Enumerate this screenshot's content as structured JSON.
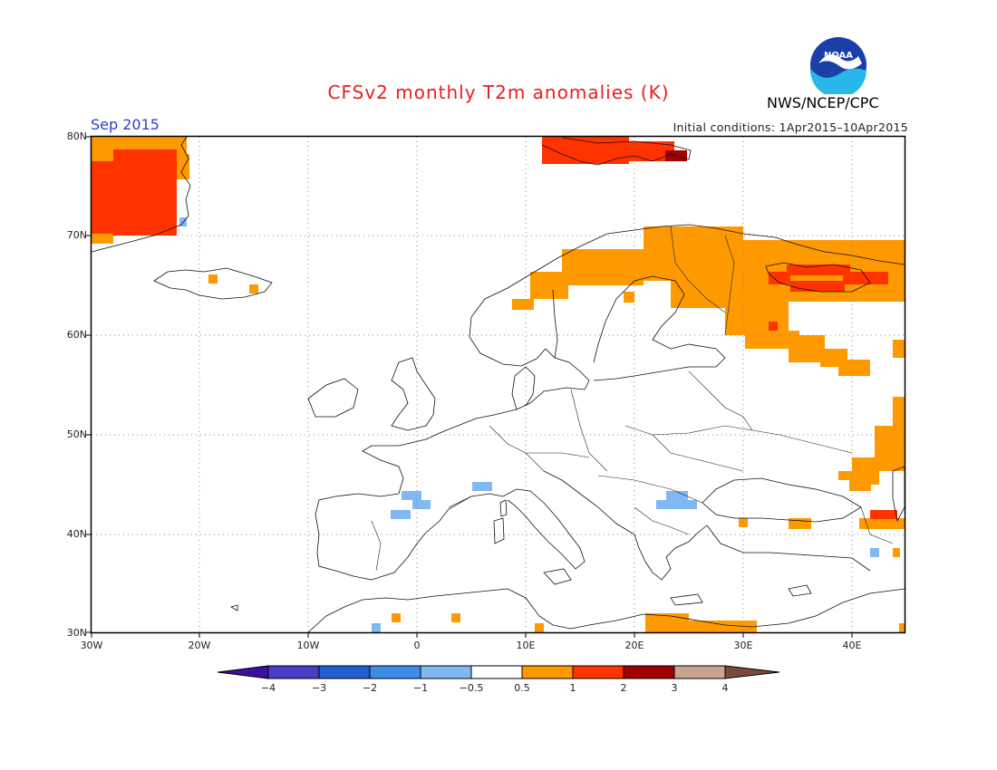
{
  "header": {
    "title": "CFSv2 monthly T2m anomalies (K)",
    "organization": "NWS/NCEP/CPC",
    "month": "Sep 2015",
    "initial_conditions": "Initial conditions: 1Apr2015–10Apr2015",
    "logo_text": "NOAA"
  },
  "map": {
    "lat_labels": [
      "80N",
      "70N",
      "60N",
      "50N",
      "40N",
      "30N"
    ],
    "lon_labels": [
      "30W",
      "20W",
      "10W",
      "0",
      "10E",
      "20E",
      "30E",
      "40E"
    ]
  },
  "colorbar": {
    "labels": [
      "−4",
      "−3",
      "−2",
      "−1",
      "−0.5",
      "0.5",
      "1",
      "2",
      "3",
      "4"
    ],
    "colors": [
      "#3d0f9e",
      "#4b3cc4",
      "#1f5fcf",
      "#3d8de8",
      "#80b8f2",
      "#ffffff",
      "#ff9900",
      "#ff3300",
      "#a00000",
      "#c9a394",
      "#7a4a3a"
    ]
  },
  "anomaly_colors": {
    "plus_0_5_to_1": "#ff9900",
    "plus_1_to_2": "#ff3300",
    "plus_2_to_3": "#a00000",
    "minus_0_5_to_1": "#80b8f2"
  }
}
